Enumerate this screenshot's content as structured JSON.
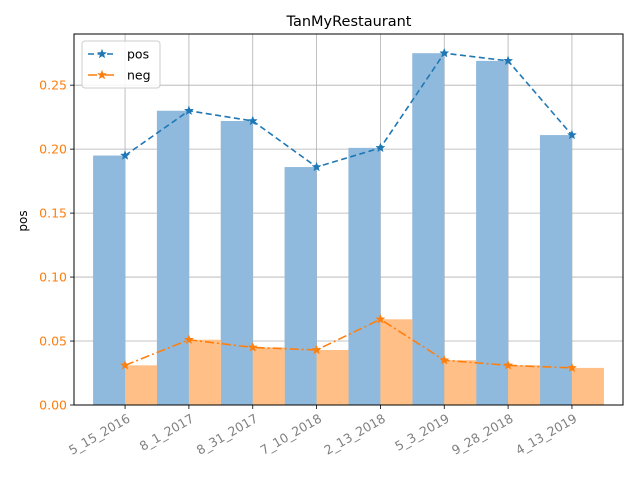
{
  "chart_data": {
    "type": "bar",
    "title": "TanMyRestaurant",
    "xlabel": "",
    "ylabel": "pos",
    "ylim": [
      0,
      0.29
    ],
    "yticks": [
      "0.00",
      "0.05",
      "0.10",
      "0.15",
      "0.20",
      "0.25"
    ],
    "grid": true,
    "legend_placement": "top-left",
    "categories": [
      "5_15_2016",
      "8_1_2017",
      "8_31_2017",
      "7_10_2018",
      "2_13_2018",
      "5_3_2019",
      "9_28_2018",
      "4_13_2019"
    ],
    "series": [
      {
        "name": "pos",
        "kind": "bar+line",
        "line_style": "dashed",
        "marker": "star",
        "color": "#1f77b4",
        "bar_color": "#8fbadd",
        "values": [
          0.195,
          0.23,
          0.222,
          0.186,
          0.201,
          0.275,
          0.269,
          0.211
        ]
      },
      {
        "name": "neg",
        "kind": "bar+line",
        "line_style": "dashdot",
        "marker": "star",
        "color": "#ff7f0e",
        "bar_color": "#ffbf86",
        "values": [
          0.031,
          0.051,
          0.045,
          0.043,
          0.067,
          0.035,
          0.031,
          0.029
        ]
      }
    ],
    "colors": {
      "axis": "#000000",
      "grid": "#b0b0b0",
      "ytick_label": "#ff7f0e",
      "xtick_label": "#808080"
    }
  }
}
